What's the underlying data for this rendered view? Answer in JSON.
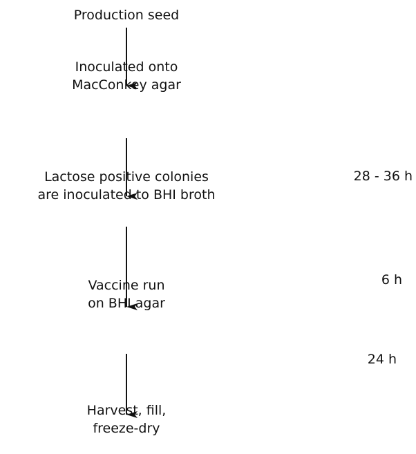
{
  "nodes": [
    {
      "label": [
        "Production seed"
      ]
    },
    {
      "label": [
        "Inoculated onto",
        "MacConkey agar"
      ]
    },
    {
      "label": [
        "Lactose positive colonies",
        "are inoculated to BHI broth"
      ]
    },
    {
      "label": [
        "Vaccine run",
        "on BHI agar"
      ]
    },
    {
      "label": [
        "Harvest, fill,",
        "freeze-dry"
      ]
    }
  ],
  "durations": [
    "28 - 36 h",
    "6 h",
    "24 h"
  ]
}
